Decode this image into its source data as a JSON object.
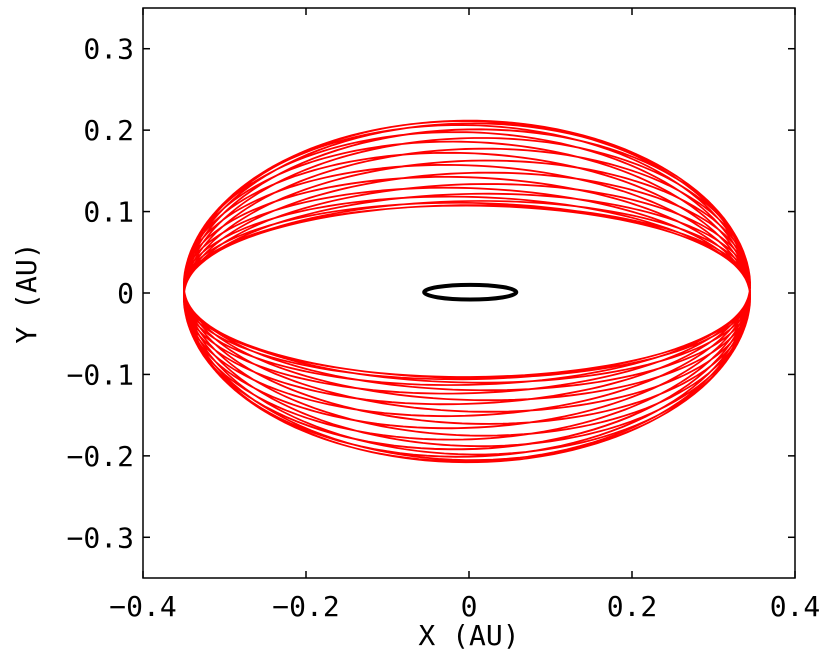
{
  "chart_data": {
    "type": "line",
    "title": "",
    "xlabel": "X (AU)",
    "ylabel": "Y (AU)",
    "xlim": [
      -0.4,
      0.4
    ],
    "ylim": [
      -0.35,
      0.35
    ],
    "grid": false,
    "legend": "none",
    "x_ticks": [
      "−0.4",
      "−0.2",
      "0",
      "0.2",
      "0.4"
    ],
    "y_ticks": [
      "−0.3",
      "−0.2",
      "−0.1",
      "0",
      "0.1",
      "0.2",
      "0.3"
    ],
    "x_tick_values": [
      -0.4,
      -0.2,
      0,
      0.2,
      0.4
    ],
    "y_tick_values": [
      -0.3,
      -0.2,
      -0.1,
      0,
      0.1,
      0.2,
      0.3
    ],
    "series": [
      {
        "color": "#ff0000",
        "description_shape": "precessing elliptical orbit forming a barrel-shaped envelope",
        "x_extent": [
          -0.35,
          0.345
        ],
        "y_extent": [
          -0.21,
          0.21
        ],
        "inner_y_extent": [
          -0.1,
          0.105
        ]
      },
      {
        "color": "#000000",
        "description_shape": "small closed ellipse at center",
        "center": [
          0.0,
          0.0
        ],
        "x_extent": [
          -0.055,
          0.058
        ],
        "y_extent": [
          -0.008,
          0.01
        ]
      }
    ]
  }
}
